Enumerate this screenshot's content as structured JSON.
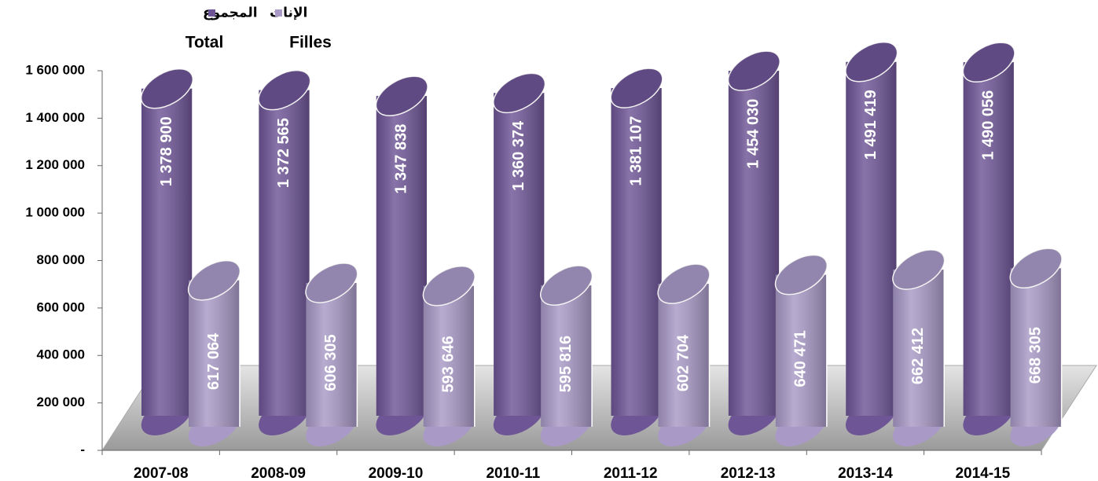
{
  "chart_data": {
    "type": "bar3d",
    "categories": [
      "2007-08",
      "2008-09",
      "2009-10",
      "2010-11",
      "2011-12",
      "2012-13",
      "2013-14",
      "2014-15"
    ],
    "series": [
      {
        "name": "المجموع",
        "name_fr": "Total",
        "color": "#6e5596",
        "values": [
          1378900,
          1372565,
          1347838,
          1360374,
          1381107,
          1454030,
          1491419,
          1490056
        ],
        "value_labels": [
          "1 378 900",
          "1 372 565",
          "1 347 838",
          "1 360 374",
          "1 381 107",
          "1 454 030",
          "1 491 419",
          "1 490 056"
        ]
      },
      {
        "name": "الإناث",
        "name_fr": "Filles",
        "color": "#a899c6",
        "values": [
          617064,
          606305,
          593646,
          595816,
          602704,
          640471,
          662412,
          668305
        ],
        "value_labels": [
          "617 064",
          "606 305",
          "593 646",
          "595 816",
          "602 704",
          "640 471",
          "662 412",
          "668 305"
        ]
      }
    ],
    "ylim": [
      0,
      1600000
    ],
    "yticks": [
      {
        "value": 0,
        "label": "-"
      },
      {
        "value": 200000,
        "label": "200 000"
      },
      {
        "value": 400000,
        "label": "400 000"
      },
      {
        "value": 600000,
        "label": "600 000"
      },
      {
        "value": 800000,
        "label": "800 000"
      },
      {
        "value": 1000000,
        "label": "1 000 000"
      },
      {
        "value": 1200000,
        "label": "1 200 000"
      },
      {
        "value": 1400000,
        "label": "1 400 000"
      },
      {
        "value": 1600000,
        "label": "1 600 000"
      }
    ],
    "legend": "top-left"
  }
}
